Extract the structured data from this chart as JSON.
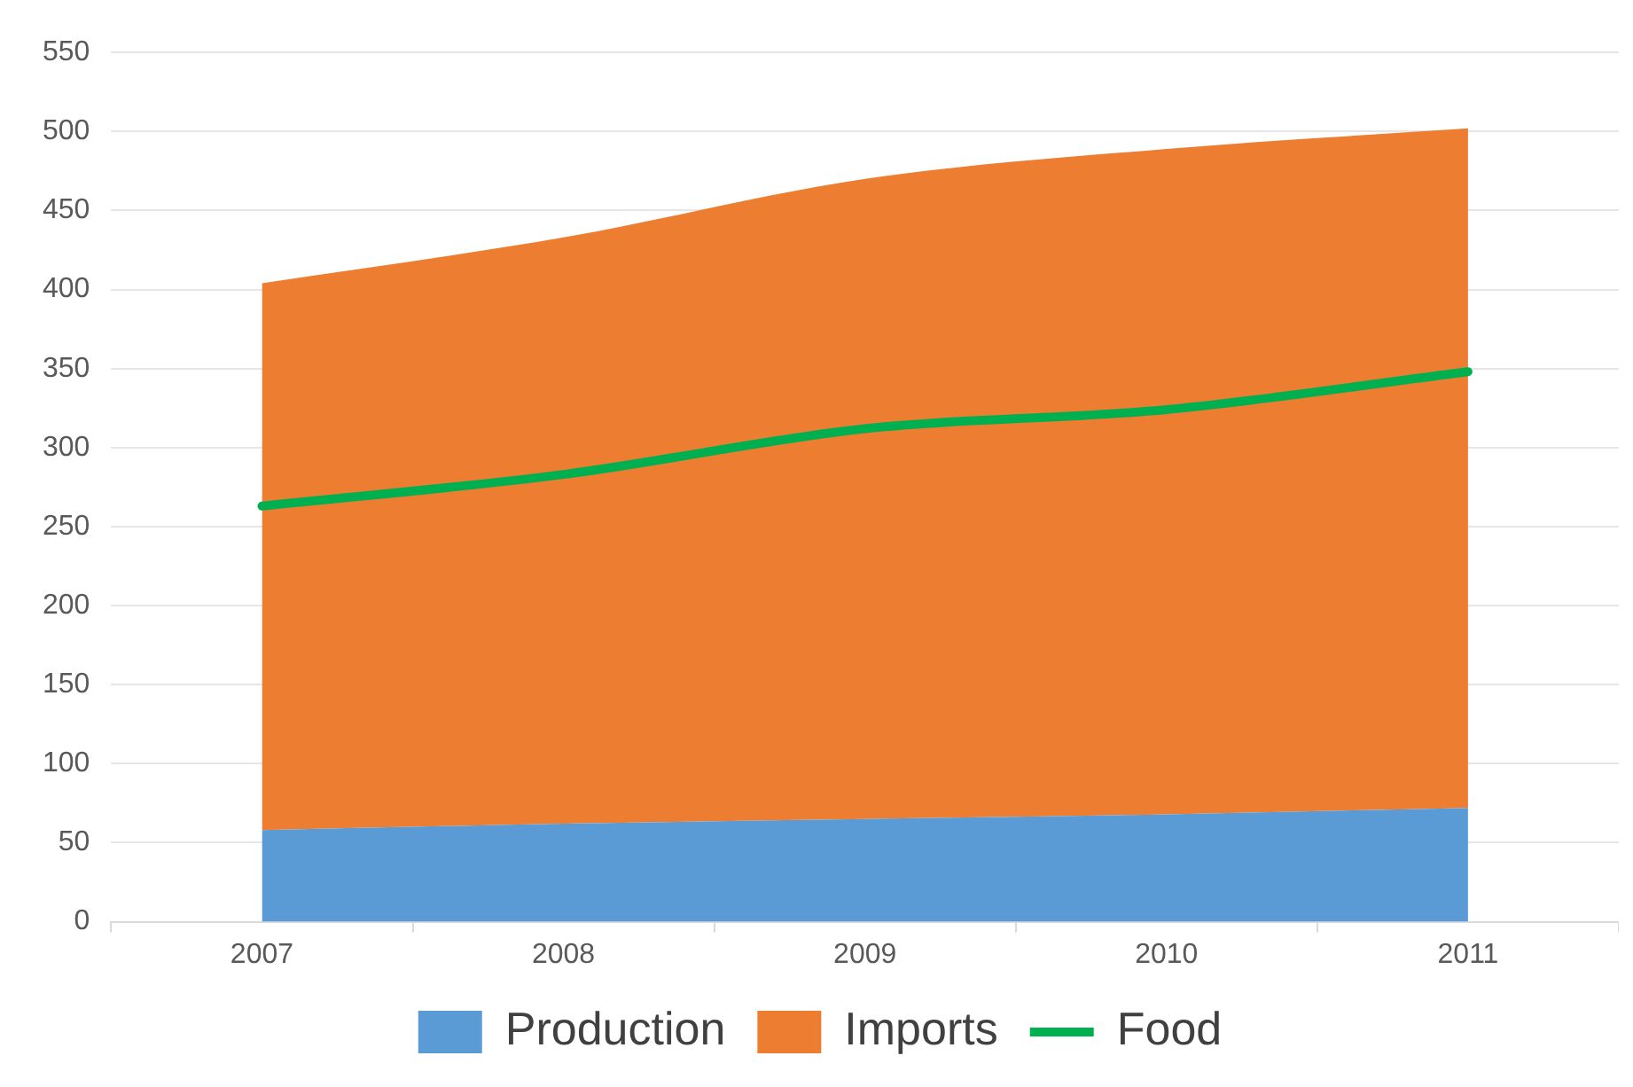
{
  "chart_data": {
    "type": "area",
    "stacked": true,
    "categories": [
      "2007",
      "2008",
      "2009",
      "2010",
      "2011"
    ],
    "series": [
      {
        "name": "Production",
        "color": "#5b9bd5",
        "values": [
          58,
          62,
          65,
          68,
          72
        ]
      },
      {
        "name": "Imports",
        "color": "#ed7d31",
        "values": [
          346,
          371,
          405,
          421,
          430
        ]
      },
      {
        "name": "Food",
        "type": "line",
        "color": "#00b050",
        "values": [
          263,
          283,
          312,
          324,
          348
        ]
      }
    ],
    "ylim": [
      0,
      550
    ],
    "yticks": [
      0,
      50,
      100,
      150,
      200,
      250,
      300,
      350,
      400,
      450,
      500,
      550
    ],
    "grid": "y",
    "legend": "bottom"
  }
}
